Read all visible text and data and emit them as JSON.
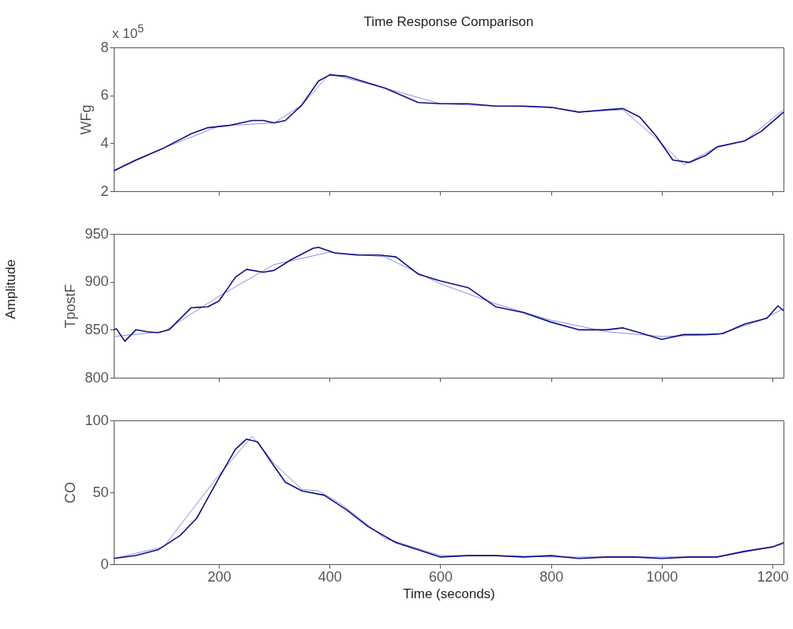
{
  "chart_data": [
    {
      "type": "line",
      "title": "Time Response Comparison",
      "ylabel": "WFg",
      "annotations": [
        "x 10$^{5}$"
      ],
      "xlim": [
        10,
        1220
      ],
      "xticks": [
        200,
        400,
        600,
        800,
        1000,
        1200
      ],
      "ylim": [
        2,
        8
      ],
      "yticks": [
        2,
        4,
        6,
        8
      ],
      "tick_labels": "y",
      "grid": false,
      "series": [
        {
          "color": "#8c8ce0",
          "x": [
            10,
            100,
            200,
            300,
            350,
            400,
            500,
            600,
            700,
            800,
            850,
            930,
            990,
            1040,
            1100,
            1150,
            1220
          ],
          "values": [
            2.85,
            3.8,
            4.72,
            4.85,
            5.6,
            6.9,
            6.3,
            5.65,
            5.55,
            5.5,
            5.3,
            5.4,
            4.2,
            3.1,
            3.85,
            4.1,
            5.4
          ]
        },
        {
          "color": "#101080",
          "x": [
            10,
            50,
            100,
            150,
            180,
            220,
            260,
            280,
            300,
            320,
            350,
            380,
            400,
            430,
            500,
            560,
            600,
            650,
            700,
            750,
            800,
            850,
            900,
            930,
            960,
            990,
            1020,
            1050,
            1080,
            1100,
            1150,
            1180,
            1220
          ],
          "values": [
            2.85,
            3.3,
            3.8,
            4.4,
            4.65,
            4.75,
            4.95,
            4.95,
            4.85,
            4.95,
            5.6,
            6.6,
            6.85,
            6.8,
            6.3,
            5.7,
            5.65,
            5.65,
            5.55,
            5.55,
            5.5,
            5.3,
            5.4,
            5.45,
            5.1,
            4.3,
            3.3,
            3.2,
            3.5,
            3.85,
            4.1,
            4.5,
            5.3
          ]
        }
      ]
    },
    {
      "type": "line",
      "ylabel": "TpostF",
      "annotations": [
        "Amplitude"
      ],
      "xlim": [
        10,
        1220
      ],
      "xticks": [
        200,
        400,
        600,
        800,
        1000,
        1200
      ],
      "ylim": [
        800,
        950
      ],
      "yticks": [
        800,
        850,
        900,
        950
      ],
      "tick_labels": "y",
      "grid": false,
      "series": [
        {
          "color": "#8c8ce0",
          "x": [
            10,
            100,
            200,
            300,
            400,
            500,
            600,
            700,
            800,
            900,
            1000,
            1100,
            1180,
            1220
          ],
          "values": [
            843,
            848,
            885,
            918,
            931,
            926,
            898,
            877,
            860,
            848,
            843,
            845,
            860,
            872
          ]
        },
        {
          "color": "#101080",
          "x": [
            10,
            15,
            30,
            50,
            70,
            90,
            110,
            150,
            180,
            200,
            230,
            250,
            280,
            300,
            330,
            370,
            380,
            410,
            450,
            490,
            520,
            560,
            600,
            650,
            700,
            750,
            800,
            850,
            900,
            930,
            960,
            1000,
            1040,
            1080,
            1110,
            1150,
            1190,
            1210,
            1220
          ],
          "values": [
            850,
            851,
            838,
            850,
            848,
            847,
            850,
            873,
            874,
            880,
            905,
            913,
            910,
            912,
            923,
            935,
            936,
            930,
            928,
            928,
            926,
            908,
            901,
            894,
            874,
            868,
            858,
            850,
            850,
            852,
            847,
            840,
            845,
            845,
            846,
            856,
            862,
            875,
            870
          ]
        }
      ]
    },
    {
      "type": "line",
      "xlabel": "Time (seconds)",
      "ylabel": "CO",
      "xlim": [
        10,
        1220
      ],
      "xticks": [
        200,
        400,
        600,
        800,
        1000,
        1200
      ],
      "ylim": [
        0,
        100
      ],
      "yticks": [
        0,
        50,
        100
      ],
      "grid": false,
      "series": [
        {
          "color": "#8c8ce0",
          "x": [
            10,
            100,
            200,
            260,
            300,
            350,
            380,
            420,
            500,
            600,
            700,
            800,
            900,
            1000,
            1100,
            1200,
            1220
          ],
          "values": [
            4,
            12,
            62,
            89,
            70,
            52,
            51,
            42,
            18,
            6,
            6,
            5,
            5,
            5,
            5,
            12,
            14
          ]
        },
        {
          "color": "#101080",
          "x": [
            10,
            50,
            90,
            130,
            160,
            200,
            230,
            250,
            270,
            300,
            320,
            350,
            390,
            430,
            470,
            520,
            560,
            600,
            650,
            700,
            750,
            800,
            850,
            900,
            950,
            1000,
            1050,
            1100,
            1150,
            1200,
            1220
          ],
          "values": [
            4,
            6,
            10,
            20,
            32,
            60,
            80,
            87,
            85,
            68,
            57,
            51,
            48,
            38,
            26,
            15,
            10,
            5,
            6,
            6,
            5,
            6,
            4,
            5,
            5,
            4,
            5,
            5,
            9,
            12,
            15
          ]
        }
      ]
    }
  ]
}
